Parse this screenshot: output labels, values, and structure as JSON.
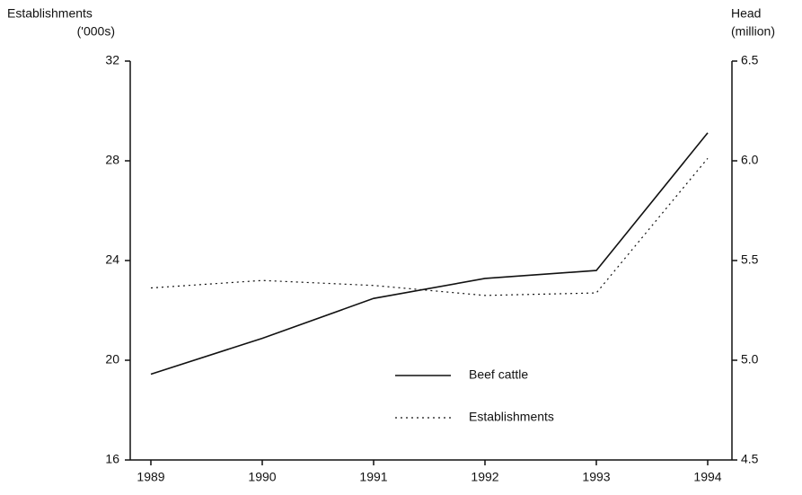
{
  "chart_data": {
    "type": "line",
    "y_label": [
      "Establishments",
      "('000s)"
    ],
    "y2_label": [
      "Head",
      "(million)"
    ],
    "x": [
      1989,
      1990,
      1991,
      1992,
      1993,
      1994
    ],
    "xticks": [
      1989,
      1990,
      1991,
      1992,
      1993,
      1994
    ],
    "xlim": [
      1989,
      1994
    ],
    "ylim": [
      16,
      32
    ],
    "yticks": [
      16,
      20,
      24,
      28,
      32
    ],
    "y2lim": [
      4.5,
      6.5
    ],
    "y2ticks": [
      4.5,
      {
        "value": 5,
        "label": "5.0"
      },
      5.5,
      {
        "value": 6,
        "label": "6.0"
      },
      6.5
    ],
    "series": [
      {
        "name": "Beef cattle",
        "color": "#111111",
        "dash": "solid",
        "axis": "y2",
        "values": [
          4.93,
          5.11,
          5.31,
          5.41,
          5.45,
          6.14
        ]
      },
      {
        "name": "Establishments",
        "color": "#111111",
        "dash": "dotted",
        "axis": "y",
        "values": [
          22.9,
          23.2,
          23.0,
          22.6,
          22.7,
          28.1
        ]
      }
    ],
    "grid": false
  }
}
